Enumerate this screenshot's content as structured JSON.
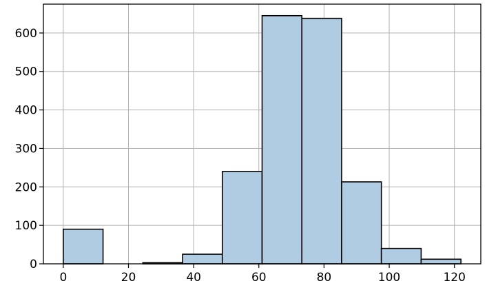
{
  "chart_data": {
    "type": "bar",
    "title": "",
    "xlabel": "",
    "ylabel": "",
    "grid": true,
    "xlim": [
      -6.1,
      128.1
    ],
    "ylim": [
      0,
      675
    ],
    "bins": [
      {
        "x0": 0.0,
        "x1": 12.2,
        "value": 90
      },
      {
        "x0": 12.2,
        "x1": 24.4,
        "value": 0
      },
      {
        "x0": 24.4,
        "x1": 36.6,
        "value": 3
      },
      {
        "x0": 36.6,
        "x1": 48.8,
        "value": 25
      },
      {
        "x0": 48.8,
        "x1": 61.0,
        "value": 240
      },
      {
        "x0": 61.0,
        "x1": 73.2,
        "value": 645
      },
      {
        "x0": 73.2,
        "x1": 85.4,
        "value": 638
      },
      {
        "x0": 85.4,
        "x1": 97.6,
        "value": 213
      },
      {
        "x0": 97.6,
        "x1": 109.8,
        "value": 40
      },
      {
        "x0": 109.8,
        "x1": 122.0,
        "value": 12
      }
    ],
    "x_ticks": [
      0,
      20,
      40,
      60,
      80,
      100,
      120
    ],
    "x_tick_labels": [
      "0",
      "20",
      "40",
      "60",
      "80",
      "100",
      "120"
    ],
    "y_ticks": [
      0,
      100,
      200,
      300,
      400,
      500,
      600
    ],
    "y_tick_labels": [
      "0",
      "100",
      "200",
      "300",
      "400",
      "500",
      "600"
    ],
    "colors": {
      "bar_fill": "#b0cce3",
      "bar_edge": "#000000",
      "grid": "#b0b0b0",
      "axis": "#000000"
    }
  }
}
